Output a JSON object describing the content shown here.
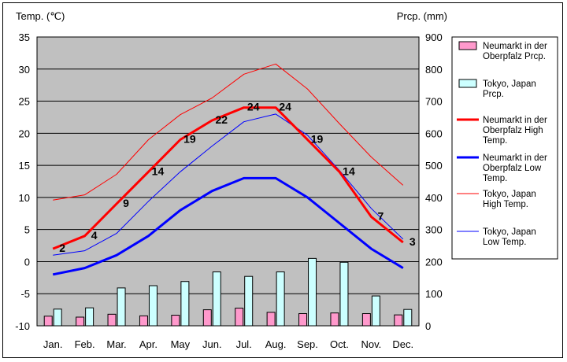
{
  "chart_data": {
    "type": "bar+line",
    "left_axis_label": "Temp. (℃)",
    "right_axis_label": "Prcp. (mm)",
    "categories": [
      "Jan.",
      "Feb.",
      "Mar.",
      "Apr.",
      "May",
      "Jun.",
      "Jul.",
      "Aug.",
      "Sep.",
      "Oct.",
      "Nov.",
      "Dec."
    ],
    "ylim_left": [
      -10,
      35
    ],
    "left_ticks": [
      35,
      30,
      25,
      20,
      15,
      10,
      5,
      0,
      -5,
      -10
    ],
    "ylim_right": [
      0,
      900
    ],
    "right_ticks": [
      900,
      800,
      700,
      600,
      500,
      400,
      300,
      200,
      100,
      0
    ],
    "grid": true,
    "legend_position": "right",
    "bar_series": [
      {
        "name": "Neumarkt in der Oberpfalz Prcp.",
        "axis": "right",
        "color": "#ff99cc",
        "values": [
          30,
          27,
          36,
          31,
          33,
          50,
          55,
          42,
          38,
          40,
          38,
          34
        ]
      },
      {
        "name": "Tokyo, Japan Prcp.",
        "axis": "right",
        "color": "#ccffff",
        "values": [
          52,
          56,
          118,
          125,
          138,
          168,
          154,
          168,
          210,
          198,
          93,
          51
        ]
      }
    ],
    "line_series": [
      {
        "name": "Neumarkt in der Oberpfalz High Temp.",
        "color": "#ff0000",
        "width": "thick",
        "values": [
          2,
          4,
          9,
          14,
          19,
          22,
          24,
          24,
          19,
          14,
          7,
          3
        ]
      },
      {
        "name": "Neumarkt in der Oberpfalz Low Temp.",
        "color": "#0000ff",
        "width": "thick",
        "values": [
          -2,
          -1,
          1,
          4,
          8,
          11,
          13,
          13,
          10,
          6,
          2,
          -1
        ]
      },
      {
        "name": "Tokyo, Japan High Temp.",
        "color": "#ff0000",
        "width": "thin",
        "values": [
          9.6,
          10.4,
          13.6,
          19,
          22.9,
          25.5,
          29.2,
          30.8,
          26.9,
          21.5,
          16.3,
          11.9
        ]
      },
      {
        "name": "Tokyo, Japan Low Temp.",
        "color": "#0000ff",
        "width": "thin",
        "values": [
          1,
          1.7,
          4.4,
          9.4,
          14,
          18,
          21.8,
          23,
          19.7,
          14.2,
          8.3,
          3.5
        ]
      }
    ],
    "data_labels": [
      2,
      4,
      9,
      14,
      19,
      22,
      24,
      24,
      19,
      14,
      7,
      3
    ],
    "legend": [
      {
        "lines": [
          "Neumarkt in der",
          "Oberpfalz Prcp."
        ],
        "kind": "bar",
        "color": "#ff99cc"
      },
      {
        "lines": [
          "Tokyo, Japan",
          "Prcp."
        ],
        "kind": "bar",
        "color": "#ccffff"
      },
      {
        "lines": [
          "Neumarkt in der",
          "Oberpfalz High",
          "Temp."
        ],
        "kind": "line",
        "color": "#ff0000",
        "width": "thick"
      },
      {
        "lines": [
          "Neumarkt in der",
          "Oberpfalz Low",
          "Temp."
        ],
        "kind": "line",
        "color": "#0000ff",
        "width": "thick"
      },
      {
        "lines": [
          "Tokyo, Japan",
          "High Temp."
        ],
        "kind": "line",
        "color": "#ff0000",
        "width": "thin"
      },
      {
        "lines": [
          "Tokyo, Japan",
          "Low Temp."
        ],
        "kind": "line",
        "color": "#0000ff",
        "width": "thin"
      }
    ],
    "colors": {
      "plot_background": "#c0c0c0",
      "grid": "#000000"
    }
  }
}
